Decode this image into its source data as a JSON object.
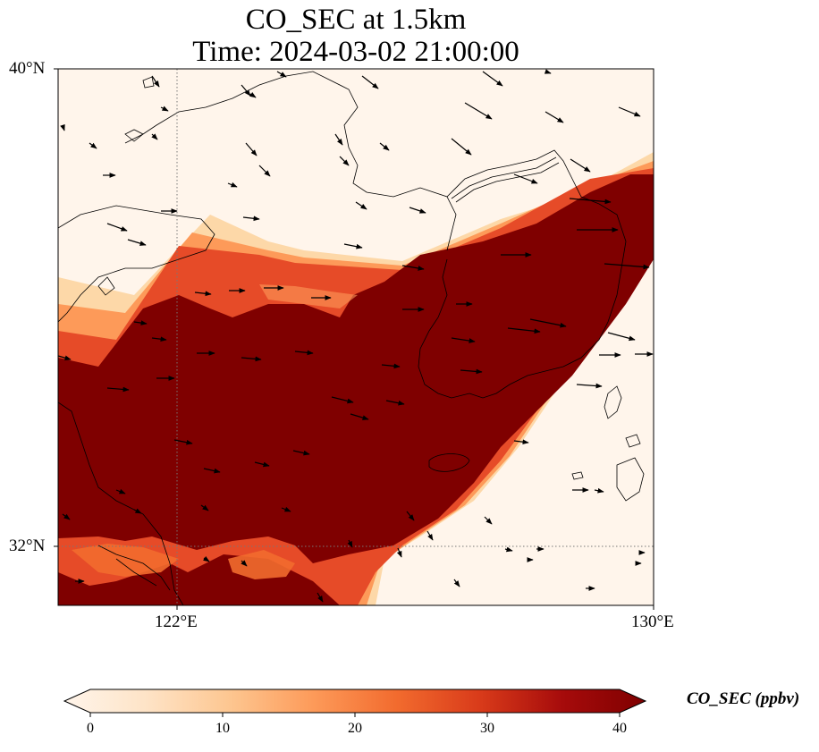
{
  "title": {
    "line1": "CO_SEC at 1.5km",
    "line2": "Time: 2024-03-02 21:00:00"
  },
  "map": {
    "lat_ticks": [
      {
        "label": "40°N",
        "value": 40
      },
      {
        "label": "32°N",
        "value": 32
      }
    ],
    "lon_ticks": [
      {
        "label": "122°E",
        "value": 122
      },
      {
        "label": "130°E",
        "value": 130
      }
    ],
    "extent": {
      "lon_min": 120,
      "lon_max": 130,
      "lat_min": 31,
      "lat_max": 40
    },
    "gridlines": "dotted",
    "field_color_stops": [
      "#fff5eb",
      "#fdd8a8",
      "#fd9a59",
      "#e64b28",
      "#7f0000"
    ]
  },
  "colorbar": {
    "label": "CO_SEC (ppbv)",
    "min": 0,
    "max": 40,
    "extend": "both",
    "ticks": [
      {
        "label": "0",
        "value": 0
      },
      {
        "label": "10",
        "value": 10
      },
      {
        "label": "20",
        "value": 20
      },
      {
        "label": "30",
        "value": 30
      },
      {
        "label": "40",
        "value": 40
      }
    ],
    "stops": [
      "#fff5eb",
      "#fee3c6",
      "#fdc690",
      "#fd9a59",
      "#f26b2e",
      "#d93b1a",
      "#a60b0b",
      "#7f0000"
    ]
  }
}
